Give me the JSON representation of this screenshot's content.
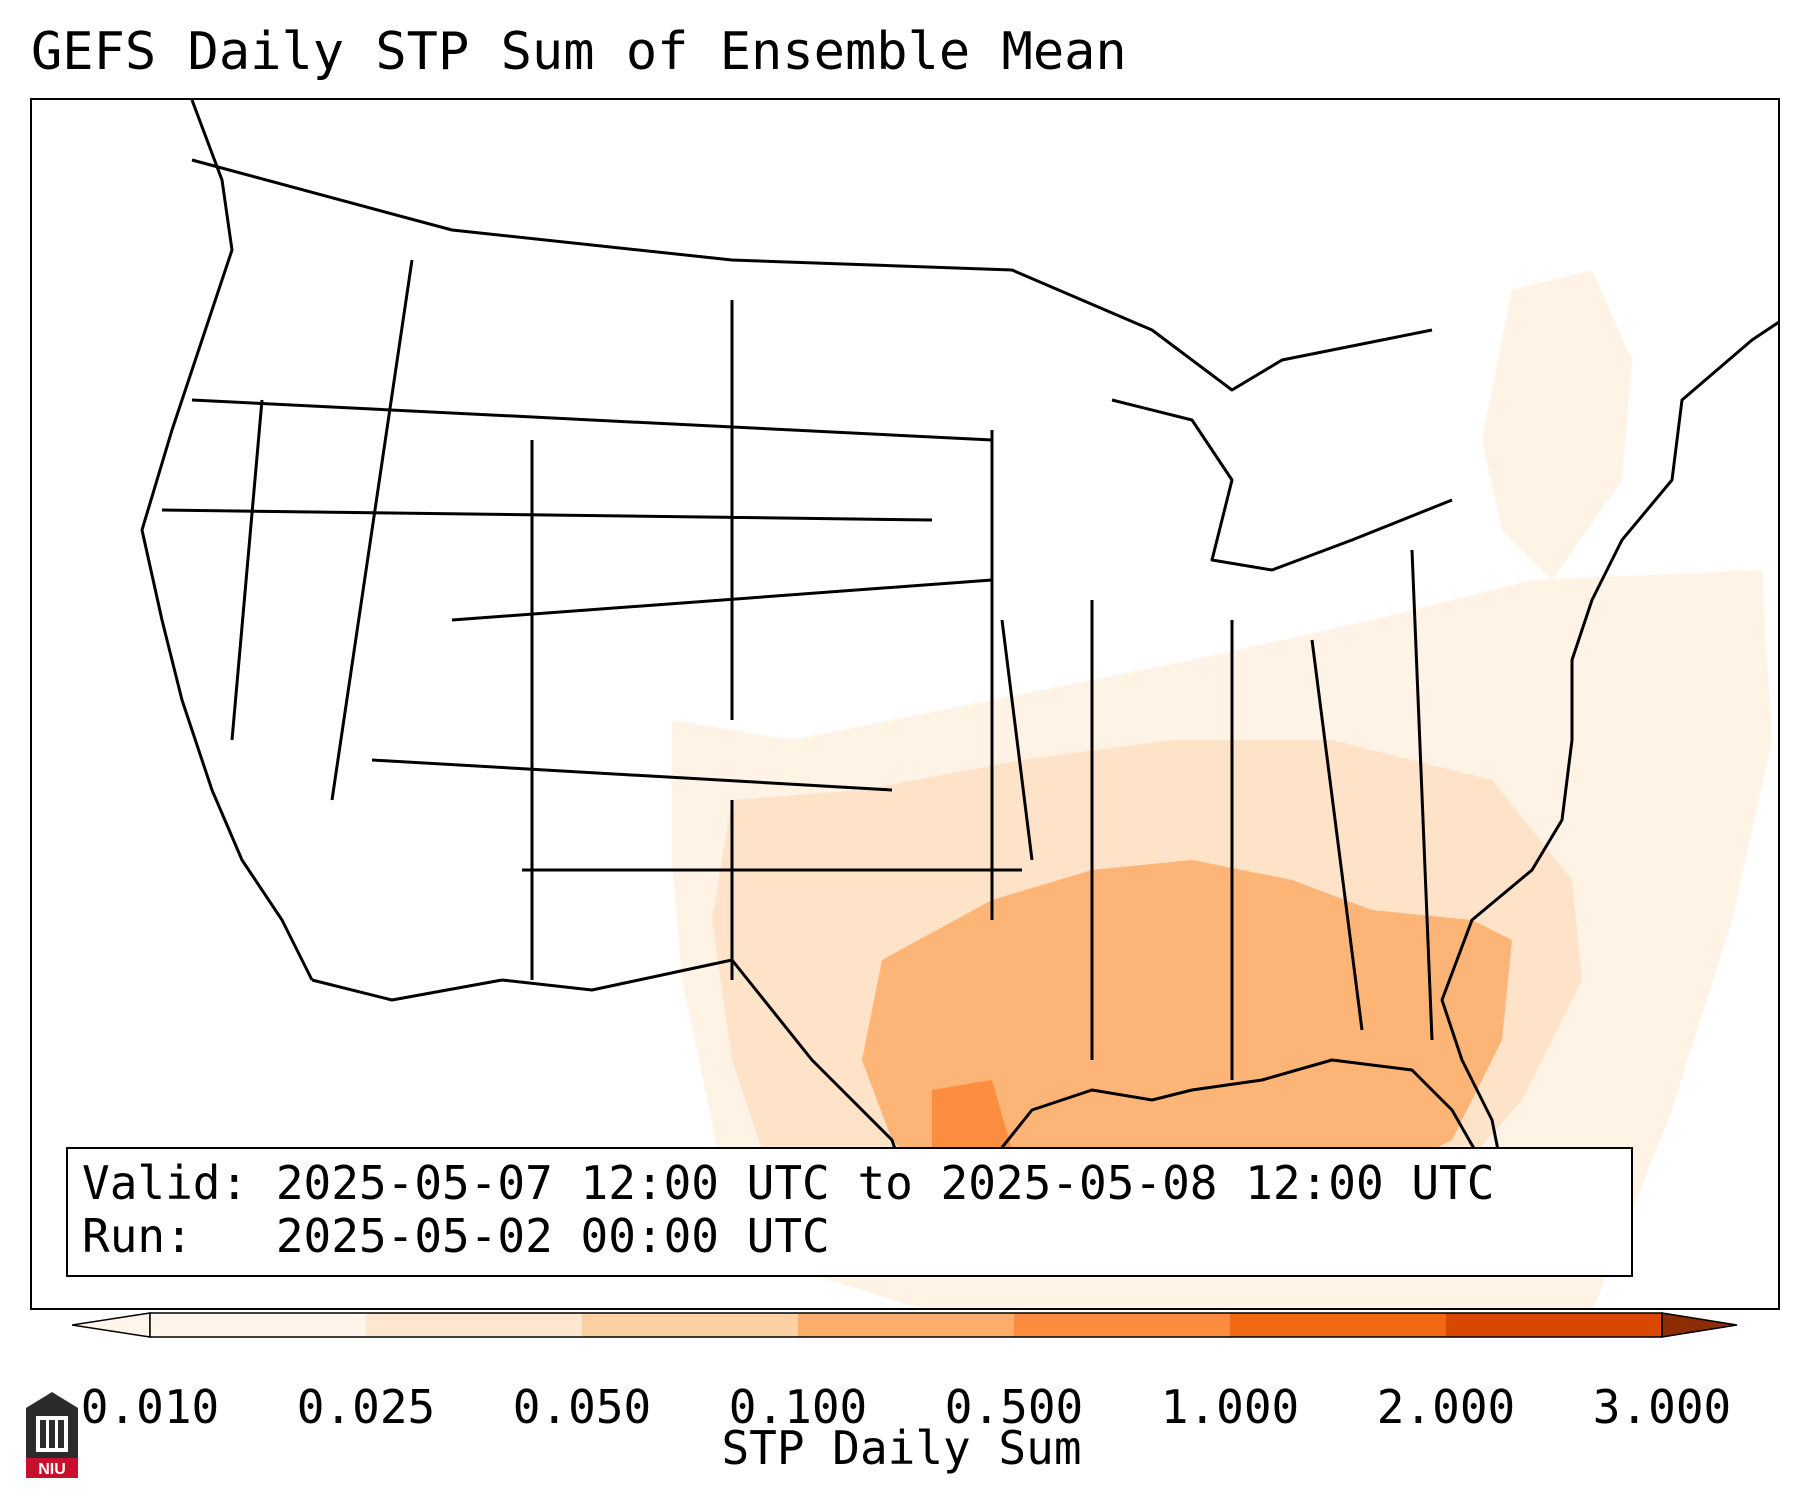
{
  "title": "GEFS Daily STP Sum of Ensemble Mean",
  "info": {
    "valid_line": "Valid: 2025-05-07 12:00 UTC to 2025-05-08 12:00 UTC",
    "run_line": "Run:   2025-05-02 00:00 UTC"
  },
  "colorbar": {
    "label": "STP Daily Sum",
    "ticks": [
      "0.010",
      "0.025",
      "0.050",
      "0.100",
      "0.500",
      "1.000",
      "2.000",
      "3.000"
    ],
    "colors": [
      "#fff5ea",
      "#fee6cf",
      "#fdd0a2",
      "#fdae6b",
      "#fd8d3c",
      "#f16913",
      "#d94801",
      "#8c2d04"
    ],
    "extend": "both"
  },
  "logo": {
    "text": "NIU",
    "icon": "niu-building-icon"
  },
  "map_colors": {
    "level1": "#fff3e6",
    "level2": "#fee3c8",
    "level3": "#fdb477",
    "level4": "#fb8d3e",
    "outline": "#000000"
  }
}
